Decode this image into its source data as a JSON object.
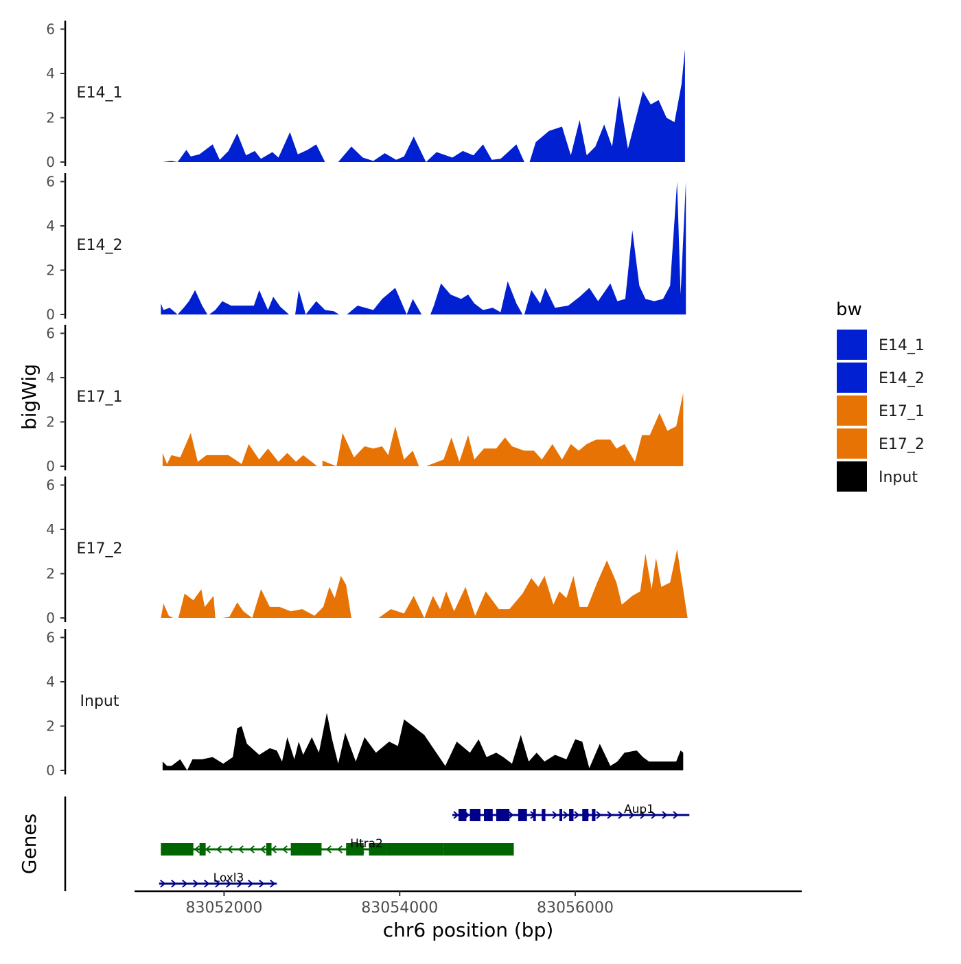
{
  "chart_data": {
    "type": "area",
    "ylabel": "bigWig",
    "xlabel": "chr6 position (bp)",
    "genes_label": "Genes",
    "ylim": [
      0,
      6.2
    ],
    "yticks": [
      0,
      2,
      4,
      6
    ],
    "xlim": [
      83050980,
      83058580
    ],
    "xticks": [
      83052000,
      83054000,
      83056000
    ],
    "xtick_labels": [
      "83052000",
      "83054000",
      "83056000"
    ],
    "legend": {
      "title": "bw",
      "position": "right",
      "entries": [
        {
          "label": "E14_1",
          "color": "#0020D2"
        },
        {
          "label": "E14_2",
          "color": "#0020D2"
        },
        {
          "label": "E17_1",
          "color": "#E87305"
        },
        {
          "label": "E17_2",
          "color": "#E87305"
        },
        {
          "label": "Input",
          "color": "#000000"
        }
      ]
    },
    "series": [
      {
        "name": "E14_1",
        "color": "#0020D2",
        "x": [
          83051300,
          83051400,
          83051470,
          83051570,
          83051620,
          83051720,
          83051870,
          83051950,
          83052050,
          83052150,
          83052250,
          83052350,
          83052420,
          83052550,
          83052620,
          83052750,
          83052840,
          83052950,
          83053050,
          83053150,
          83053300,
          83053450,
          83053580,
          83053700,
          83053830,
          83053960,
          83054050,
          83054160,
          83054300,
          83054420,
          83054600,
          83054720,
          83054840,
          83054950,
          83055050,
          83055150,
          83055220,
          83055330,
          83055480,
          83055550,
          83055700,
          83055850,
          83055950,
          83056050,
          83056130,
          83056230,
          83056330,
          83056420,
          83056500,
          83056600,
          83056680,
          83056770,
          83056860,
          83056950,
          83057040,
          83057130,
          83057210,
          83057250
        ],
        "y": [
          0,
          0.05,
          0,
          0.55,
          0.25,
          0.35,
          0.8,
          0.1,
          0.5,
          1.3,
          0.3,
          0.5,
          0.15,
          0.45,
          0.2,
          1.35,
          0.35,
          0.55,
          0.8,
          0,
          0,
          0.7,
          0.2,
          0.05,
          0.4,
          0.1,
          0.25,
          1.15,
          0,
          0.45,
          0.2,
          0.5,
          0.3,
          0.8,
          0.1,
          0.15,
          0.4,
          0.8,
          0,
          0.9,
          1.4,
          1.6,
          0.3,
          1.9,
          0.3,
          0.7,
          1.7,
          0.7,
          3,
          0.6,
          1.8,
          3.2,
          2.6,
          2.8,
          2,
          1.8,
          3.5,
          5.1
        ],
        "gaps": [
          [
            83053180,
            83053370
          ],
          [
            83055420,
            83055470
          ]
        ]
      },
      {
        "name": "E14_2",
        "color": "#0020D2",
        "x": [
          83051280,
          83051310,
          83051380,
          83051470,
          83051540,
          83051600,
          83051670,
          83051750,
          83051900,
          83051980,
          83052080,
          83052200,
          83052340,
          83052400,
          83052500,
          83052560,
          83052640,
          83052850,
          83052930,
          83053050,
          83053150,
          83053250,
          83053400,
          83053520,
          83053700,
          83053800,
          83053950,
          83054080,
          83054150,
          83054250,
          83054390,
          83054470,
          83054580,
          83054700,
          83054780,
          83054850,
          83054950,
          83055060,
          83055150,
          83055230,
          83055330,
          83055500,
          83055600,
          83055660,
          83055770,
          83055840,
          83055920,
          83056050,
          83056160,
          83056260,
          83056400,
          83056480,
          83056570,
          83056650,
          83056730,
          83056800,
          83056900,
          83057000,
          83057080,
          83057160,
          83057200,
          83057260
        ],
        "y": [
          0.5,
          0.2,
          0.3,
          0,
          0.3,
          0.6,
          1.1,
          0.4,
          0.2,
          0.6,
          0.4,
          0.4,
          0.4,
          1.1,
          0.2,
          0.8,
          0.35,
          1.1,
          0,
          0.6,
          0.2,
          0.15,
          0,
          0.4,
          0.2,
          0.7,
          1.2,
          0,
          0.7,
          0,
          0.4,
          1.4,
          0.9,
          0.7,
          0.9,
          0.5,
          0.2,
          0.3,
          0.1,
          1.5,
          0.5,
          1.1,
          0.5,
          1.2,
          0.3,
          0.35,
          0.4,
          0.8,
          1.2,
          0.6,
          1.4,
          0.6,
          0.7,
          3.8,
          1.3,
          0.7,
          0.6,
          0.7,
          1.3,
          6,
          0.9,
          6
        ],
        "gaps": [
          [
            83051810,
            83051830
          ],
          [
            83052740,
            83052810
          ],
          [
            83053310,
            83053400
          ],
          [
            83054320,
            83054350
          ],
          [
            83055400,
            83055420
          ]
        ]
      },
      {
        "name": "E17_1",
        "color": "#E87305",
        "x": [
          83051300,
          83051350,
          83051400,
          83051500,
          83051620,
          83051700,
          83051800,
          83051950,
          83052050,
          83052200,
          83052280,
          83052400,
          83052500,
          83052620,
          83052720,
          83052820,
          83052900,
          83053030,
          83053120,
          83053280,
          83053350,
          83053480,
          83053600,
          83053700,
          83053800,
          83053870,
          83053950,
          83054050,
          83054150,
          83054300,
          83054500,
          83054590,
          83054680,
          83054780,
          83054850,
          83054960,
          83055100,
          83055200,
          83055280,
          83055420,
          83055530,
          83055620,
          83055740,
          83055850,
          83055950,
          83056040,
          83056130,
          83056240,
          83056400,
          83056470,
          83056560,
          83056680,
          83056760,
          83056850,
          83056960,
          83057050,
          83057150,
          83057230
        ],
        "y": [
          0.6,
          0.1,
          0.5,
          0.4,
          1.5,
          0.2,
          0.5,
          0.5,
          0.5,
          0.1,
          1,
          0.3,
          0.8,
          0.2,
          0.6,
          0.2,
          0.5,
          0.1,
          0.25,
          0,
          1.5,
          0.4,
          0.9,
          0.8,
          0.9,
          0.5,
          1.8,
          0.3,
          0.7,
          0,
          0.3,
          1.3,
          0.2,
          1.4,
          0.3,
          0.8,
          0.8,
          1.3,
          0.9,
          0.7,
          0.7,
          0.3,
          1,
          0.3,
          1,
          0.7,
          1,
          1.2,
          1.2,
          0.8,
          1,
          0.2,
          1.4,
          1.4,
          2.4,
          1.6,
          1.8,
          3.3
        ],
        "gaps": [
          [
            83052180,
            83052230
          ],
          [
            83052880,
            83052920
          ],
          [
            83053060,
            83053120
          ],
          [
            83054220,
            83054280
          ]
        ]
      },
      {
        "name": "E17_2",
        "color": "#E87305",
        "x": [
          83051280,
          83051310,
          83051370,
          83051420,
          83051550,
          83051650,
          83051740,
          83051780,
          83051880,
          83051980,
          83052060,
          83052150,
          83052220,
          83052320,
          83052420,
          83052520,
          83052630,
          83052760,
          83052890,
          83053030,
          83053130,
          83053200,
          83053260,
          83053330,
          83053390,
          83053620,
          83053760,
          83053900,
          83054050,
          83054160,
          83054280,
          83054380,
          83054460,
          83054530,
          83054620,
          83054750,
          83054860,
          83054980,
          83055130,
          83055250,
          83055400,
          83055500,
          83055580,
          83055650,
          83055750,
          83055820,
          83055900,
          83055980,
          83056050,
          83056140,
          83056250,
          83056360,
          83056470,
          83056530,
          83056650,
          83056740,
          83056800,
          83056870,
          83056920,
          83056980,
          83057080,
          83057160,
          83057280
        ],
        "y": [
          0,
          0.65,
          0.1,
          0,
          1.1,
          0.8,
          1.3,
          0.5,
          1,
          0,
          0.05,
          0.7,
          0.3,
          0,
          1.3,
          0.5,
          0.5,
          0.3,
          0.4,
          0.1,
          0.5,
          1.4,
          0.9,
          1.9,
          1.5,
          0,
          0,
          0.4,
          0.2,
          1,
          0,
          1,
          0.4,
          1.2,
          0.3,
          1.4,
          0.1,
          1.2,
          0.4,
          0.4,
          1.1,
          1.8,
          1.4,
          1.9,
          0.6,
          1.2,
          0.9,
          1.9,
          0.5,
          0.5,
          1.6,
          2.6,
          1.6,
          0.6,
          1,
          1.2,
          2.9,
          1.3,
          2.7,
          1.4,
          1.6,
          3.1,
          0
        ],
        "gaps": [
          [
            83051440,
            83051480
          ],
          [
            83051900,
            83051960
          ],
          [
            83052720,
            83052790
          ],
          [
            83053450,
            83053560
          ],
          [
            83054260,
            83054300
          ]
        ]
      },
      {
        "name": "Input",
        "color": "#000000",
        "x": [
          83051300,
          83051350,
          83051400,
          83051500,
          83051580,
          83051640,
          83051750,
          83051870,
          83051990,
          83052100,
          83052150,
          83052200,
          83052260,
          83052400,
          83052520,
          83052600,
          83052660,
          83052720,
          83052800,
          83052850,
          83052900,
          83053000,
          83053080,
          83053170,
          83053230,
          83053300,
          83053380,
          83053500,
          83053600,
          83053730,
          83053880,
          83053980,
          83054050,
          83054150,
          83054280,
          83054400,
          83054520,
          83054650,
          83054800,
          83054900,
          83054990,
          83055100,
          83055180,
          83055280,
          83055380,
          83055470,
          83055560,
          83055650,
          83055770,
          83055900,
          83056000,
          83056080,
          83056160,
          83056280,
          83056400,
          83056480,
          83056560,
          83056700,
          83056770,
          83056840,
          83056910,
          83056990,
          83057070,
          83057150,
          83057200,
          83057230
        ],
        "y": [
          0.4,
          0.2,
          0.2,
          0.5,
          0,
          0.5,
          0.5,
          0.6,
          0.3,
          0.6,
          1.9,
          2,
          1.2,
          0.7,
          1,
          0.9,
          0.4,
          1.5,
          0.5,
          1.3,
          0.7,
          1.5,
          0.8,
          2.6,
          1.4,
          0.3,
          1.7,
          0.4,
          1.5,
          0.8,
          1.3,
          1.1,
          2.3,
          2,
          1.6,
          0.9,
          0.2,
          1.3,
          0.8,
          1.4,
          0.6,
          0.8,
          0.6,
          0.3,
          1.6,
          0.4,
          0.8,
          0.4,
          0.7,
          0.5,
          1.4,
          1.3,
          0.1,
          1.2,
          0.2,
          0.4,
          0.8,
          0.9,
          0.6,
          0.4,
          0.4,
          0.4,
          0.4,
          0.4,
          0.9,
          0.8
        ],
        "gaps": []
      }
    ],
    "genes": [
      {
        "name": "Aup1",
        "strand": "+",
        "color": "#00008B",
        "start": 83054600,
        "end": 83057300,
        "row": 0,
        "exons": [
          [
            83054670,
            83054760
          ],
          [
            83054800,
            83054920
          ],
          [
            83054960,
            83055060
          ],
          [
            83055100,
            83055250
          ],
          [
            83055350,
            83055450
          ],
          [
            83055520,
            83055550
          ],
          [
            83055620,
            83055660
          ],
          [
            83055820,
            83055840
          ],
          [
            83055930,
            83055980
          ],
          [
            83056080,
            83056150
          ],
          [
            83056190,
            83056230
          ]
        ]
      },
      {
        "name": "Htra2",
        "strand": "-",
        "color": "#006400",
        "start": 83051280,
        "end": 83055300,
        "row": 1,
        "exons": [
          [
            83051280,
            83051650
          ],
          [
            83051720,
            83051790
          ],
          [
            83052480,
            83052540
          ],
          [
            83052760,
            83052880
          ],
          [
            83052880,
            83053110
          ],
          [
            83053390,
            83053590
          ],
          [
            83053650,
            83053850
          ],
          [
            83053850,
            83054500
          ],
          [
            83054500,
            83055300
          ]
        ]
      },
      {
        "name": "Loxl3",
        "strand": "+",
        "color": "#00008B",
        "start": 83051260,
        "end": 83052600,
        "row": 2,
        "exons": []
      }
    ]
  },
  "panels": [
    {
      "label": "E14_1"
    },
    {
      "label": "E14_2"
    },
    {
      "label": "E17_1"
    },
    {
      "label": "E17_2"
    },
    {
      "label": "Input"
    }
  ]
}
